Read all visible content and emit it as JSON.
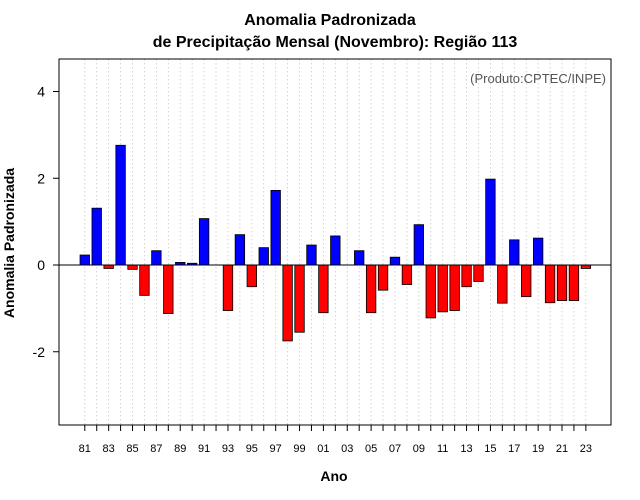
{
  "chart_data": {
    "type": "bar",
    "title": "Anomalia Padronizada",
    "subtitle": "de Precipitação Mensal (Novembro): Região 113",
    "xlabel": "Ano",
    "ylabel": "Anomalia Padronizada",
    "annotation": "(Produto:CPTEC/INPE)",
    "ylim": [
      -3.8,
      4.8
    ],
    "yticks": [
      -2,
      0,
      2,
      4
    ],
    "yticklabels": [
      "-2",
      "0",
      "2",
      "4"
    ],
    "grid": "vertical dotted",
    "positive_color": "#0000ff",
    "negative_color": "#ff0000",
    "categories": [
      "81",
      "82",
      "83",
      "84",
      "85",
      "86",
      "87",
      "88",
      "89",
      "90",
      "91",
      "92",
      "93",
      "94",
      "95",
      "96",
      "97",
      "98",
      "99",
      "00",
      "01",
      "02",
      "03",
      "04",
      "05",
      "06",
      "07",
      "08",
      "09",
      "10",
      "11",
      "12",
      "13",
      "14",
      "15",
      "16",
      "17",
      "18",
      "19",
      "20",
      "21",
      "22",
      "23"
    ],
    "xticklabels": [
      "81",
      "83",
      "85",
      "87",
      "89",
      "91",
      "93",
      "95",
      "97",
      "99",
      "01",
      "03",
      "05",
      "07",
      "09",
      "11",
      "13",
      "15",
      "17",
      "19",
      "21",
      "23"
    ],
    "values": [
      0.23,
      1.31,
      -0.08,
      2.76,
      -0.1,
      -0.7,
      0.33,
      -1.12,
      0.06,
      0.04,
      1.07,
      0.0,
      -1.05,
      0.7,
      -0.5,
      0.4,
      1.72,
      -1.75,
      -1.55,
      0.46,
      -1.1,
      0.67,
      0.0,
      0.33,
      -1.1,
      -0.58,
      0.18,
      -0.45,
      0.93,
      -1.22,
      -1.08,
      -1.05,
      -0.5,
      -0.38,
      1.98,
      -0.88,
      0.58,
      -0.73,
      0.62,
      -0.87,
      -0.82,
      -0.82,
      -0.08
    ]
  }
}
